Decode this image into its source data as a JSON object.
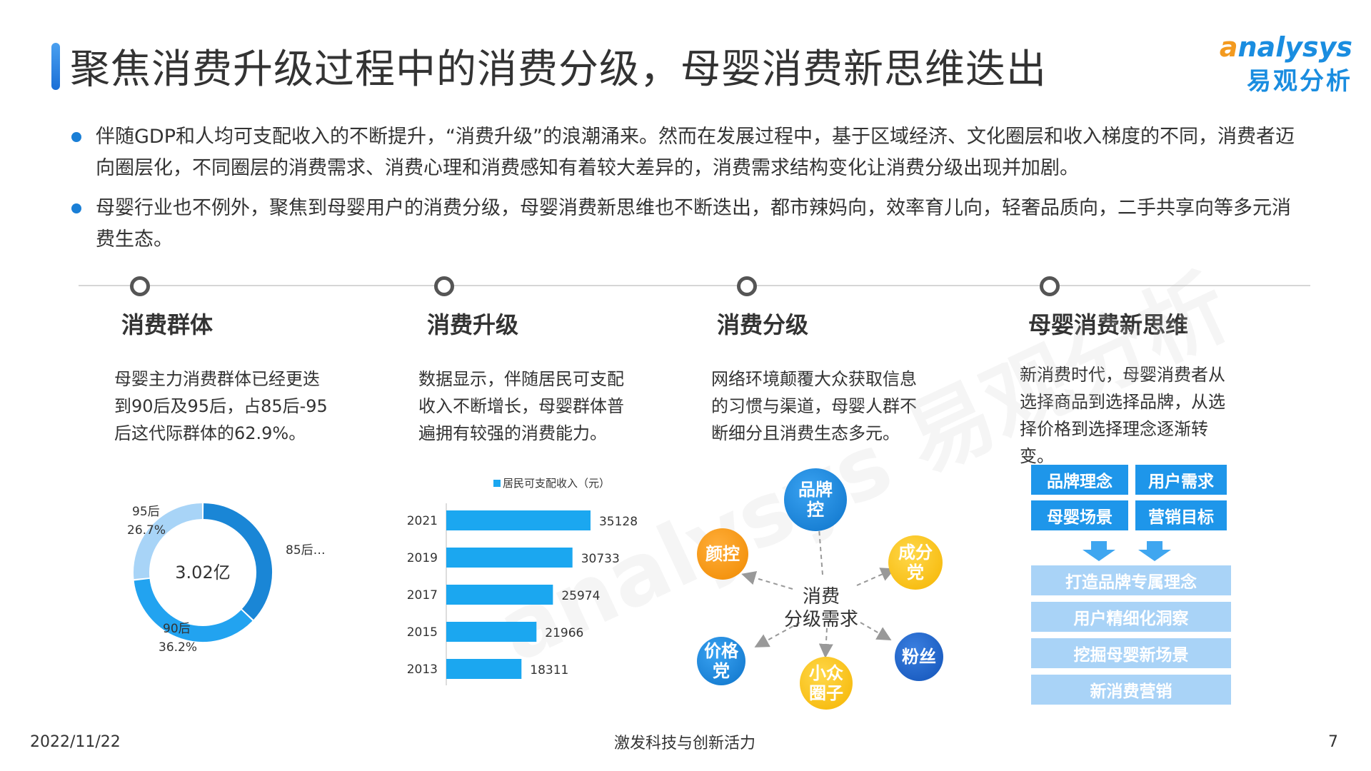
{
  "header": {
    "title": "聚焦消费升级过程中的消费分级，母婴消费新思维迭出",
    "logo_en_mark": "a",
    "logo_en_rest": "nalysys",
    "logo_cn": "易观分析"
  },
  "bullets": [
    "伴随GDP和人均可支配收入的不断提升，“消费升级”的浪潮涌来。然而在发展过程中，基于区域经济、文化圈层和收入梯度的不同，消费者迈向圈层化，不同圈层的消费需求、消费心理和消费感知有着较大差异的，消费需求结构变化让消费分级出现并加剧。",
    "母婴行业也不例外，聚焦到母婴用户的消费分级，母婴消费新思维也不断迭出，都市辣妈向，效率育儿向，轻奢品质向，二手共享向等多元消费生态。"
  ],
  "sections": [
    {
      "title": "消费群体",
      "text": "母婴主力消费群体已经更迭到90后及95后，占85后-95后这代际群体的62.9%。"
    },
    {
      "title": "消费升级",
      "text": "数据显示，伴随居民可支配收入不断增长，母婴群体普遍拥有较强的消费能力。"
    },
    {
      "title": "消费分级",
      "text": "网络环境颠覆大众获取信息的习惯与渠道，母婴人群不断细分且消费生态多元。"
    },
    {
      "title": "母婴消费新思维",
      "text": "新消费时代，母婴消费者从选择商品到选择品牌，从选择价格到选择理念逐渐转变。"
    }
  ],
  "chart_data": [
    {
      "type": "pie",
      "center_label": "3.02亿",
      "slices": [
        {
          "label": "85后…",
          "percent": 37.1,
          "color": "#1a86d6"
        },
        {
          "label": "90后",
          "percent": 36.2,
          "color": "#22a3f0"
        },
        {
          "label": "95后",
          "percent": 26.7,
          "color": "#a8d4f7"
        }
      ],
      "labels_shown": {
        "p95": "95后",
        "p95_val": "26.7%",
        "p85": "85后…",
        "p90": "90后",
        "p90_val": "36.2%"
      }
    },
    {
      "type": "bar",
      "orientation": "horizontal",
      "legend": "居民可支配收入（元）",
      "categories": [
        "2021",
        "2019",
        "2017",
        "2015",
        "2013"
      ],
      "values": [
        35128,
        30733,
        25974,
        21966,
        18311
      ],
      "xlim": [
        0,
        40000
      ],
      "color": "#1ba7f0"
    }
  ],
  "diagram": {
    "center": [
      "消费",
      "分级需求"
    ],
    "nodes": {
      "brand": "品牌控",
      "look": "颜控",
      "ingredient": "成分党",
      "price": "价格党",
      "niche": "小众圈子",
      "fans": "粉丝"
    }
  },
  "new_thinking": {
    "tags": [
      "品牌理念",
      "用户需求",
      "母婴场景",
      "营销目标"
    ],
    "results": [
      "打造品牌专属理念",
      "用户精细化洞察",
      "挖掘母婴新场景",
      "新消费营销"
    ]
  },
  "footer": {
    "date": "2022/11/22",
    "slogan": "激发科技与创新活力",
    "page": "7"
  },
  "watermark": "analysys 易观分析"
}
